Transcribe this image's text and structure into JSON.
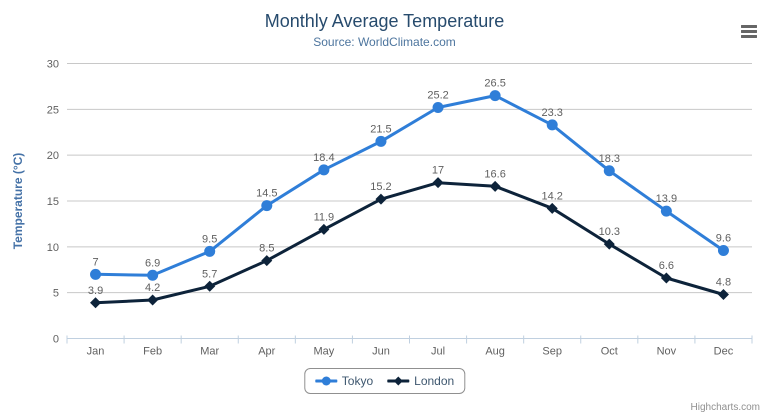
{
  "chart_data": {
    "type": "line",
    "title": "Monthly Average Temperature",
    "subtitle": "Source: WorldClimate.com",
    "categories": [
      "Jan",
      "Feb",
      "Mar",
      "Apr",
      "May",
      "Jun",
      "Jul",
      "Aug",
      "Sep",
      "Oct",
      "Nov",
      "Dec"
    ],
    "series": [
      {
        "name": "Tokyo",
        "color": "#2f7ed8",
        "marker": "circle",
        "values": [
          7,
          6.9,
          9.5,
          14.5,
          18.4,
          21.5,
          25.2,
          26.5,
          23.3,
          18.3,
          13.9,
          9.6
        ]
      },
      {
        "name": "London",
        "color": "#0d233a",
        "marker": "diamond",
        "values": [
          3.9,
          4.2,
          5.7,
          8.5,
          11.9,
          15.2,
          17,
          16.6,
          14.2,
          10.3,
          6.6,
          4.8
        ]
      }
    ],
    "xlabel": "",
    "ylabel": "Temperature (°C)",
    "ylim": [
      0,
      30
    ],
    "yticks": [
      0,
      5,
      10,
      15,
      20,
      25,
      30
    ],
    "grid": true,
    "data_labels": true,
    "legend_position": "bottom"
  },
  "credit": {
    "label": "Highcharts.com"
  },
  "colors": {
    "title": "#274b6d",
    "subtitle": "#4d759e",
    "axis_label": "#606060",
    "axis_title": "#4572a7",
    "gridline": "#c8c8c8",
    "axis_line": "#c0d0e0",
    "data_label": "#606060",
    "legend_border": "#909090",
    "legend_text": "#3e576f",
    "credit": "#909090",
    "menu_icon": "#666666"
  }
}
